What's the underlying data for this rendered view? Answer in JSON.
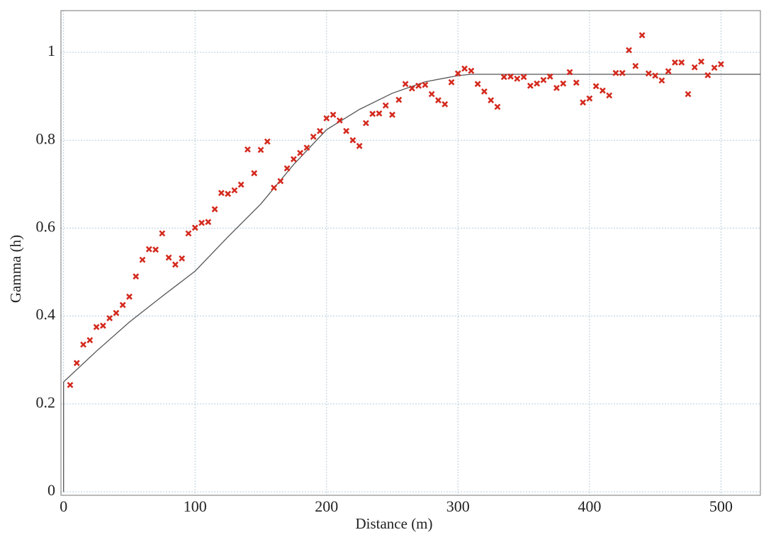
{
  "chart_data": {
    "type": "scatter",
    "x_label": "Distance (m)",
    "y_label": "Gamma (h)",
    "x": [
      5,
      10,
      15,
      20,
      25,
      30,
      35,
      40,
      45,
      50,
      55,
      60,
      65,
      70,
      75,
      80,
      85,
      90,
      95,
      100,
      105,
      110,
      115,
      120,
      125,
      130,
      135,
      140,
      145,
      150,
      155,
      160,
      165,
      170,
      175,
      180,
      185,
      190,
      195,
      200,
      205,
      210,
      215,
      220,
      225,
      230,
      235,
      240,
      245,
      250,
      255,
      260,
      265,
      270,
      275,
      280,
      285,
      290,
      295,
      300,
      305,
      310,
      315,
      320,
      325,
      330,
      335,
      340,
      345,
      350,
      355,
      360,
      365,
      370,
      375,
      380,
      385,
      390,
      395,
      400,
      405,
      410,
      415,
      420,
      425,
      430,
      435,
      440,
      445,
      450,
      455,
      460,
      465,
      470,
      475,
      480,
      485,
      490,
      495,
      500
    ],
    "values": [
      0.243,
      0.293,
      0.335,
      0.345,
      0.375,
      0.378,
      0.395,
      0.407,
      0.425,
      0.444,
      0.49,
      0.528,
      0.552,
      0.551,
      0.588,
      0.533,
      0.517,
      0.531,
      0.588,
      0.601,
      0.612,
      0.614,
      0.643,
      0.68,
      0.678,
      0.686,
      0.699,
      0.779,
      0.725,
      0.778,
      0.797,
      0.692,
      0.707,
      0.736,
      0.757,
      0.771,
      0.783,
      0.808,
      0.821,
      0.85,
      0.858,
      0.845,
      0.821,
      0.8,
      0.787,
      0.839,
      0.86,
      0.861,
      0.879,
      0.858,
      0.892,
      0.928,
      0.918,
      0.924,
      0.926,
      0.905,
      0.891,
      0.882,
      0.932,
      0.952,
      0.963,
      0.958,
      0.928,
      0.911,
      0.891,
      0.876,
      0.944,
      0.945,
      0.94,
      0.944,
      0.924,
      0.929,
      0.937,
      0.945,
      0.919,
      0.929,
      0.955,
      0.931,
      0.886,
      0.895,
      0.923,
      0.913,
      0.902,
      0.953,
      0.953,
      1.005,
      0.969,
      1.039,
      0.952,
      0.947,
      0.936,
      0.957,
      0.977,
      0.977,
      0.905,
      0.966,
      0.979,
      0.948,
      0.965,
      0.973
    ],
    "color": "#d42a1e",
    "curve": {
      "x": [
        0,
        0,
        25,
        50,
        75,
        100,
        125,
        150,
        175,
        200,
        225,
        250,
        275,
        300,
        310,
        530
      ],
      "values": [
        0,
        0.25,
        0.32,
        0.386,
        0.445,
        0.502,
        0.58,
        0.655,
        0.745,
        0.824,
        0.87,
        0.907,
        0.933,
        0.947,
        0.95,
        0.95
      ],
      "color": "#555555"
    },
    "xlim": [
      -2,
      530
    ],
    "ylim": [
      -0.008,
      1.095
    ],
    "xticks": [
      0,
      100,
      200,
      300,
      400,
      500
    ],
    "yticks": [
      0,
      0.2,
      0.4,
      0.6,
      0.8,
      1
    ],
    "grid": true
  }
}
